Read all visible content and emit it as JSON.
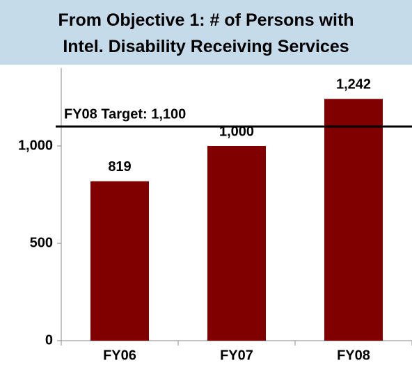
{
  "chart_data": {
    "type": "bar",
    "title": "From Objective 1: # of Persons with Intel. Disability Receiving Services",
    "categories": [
      "FY06",
      "FY07",
      "FY08"
    ],
    "values": [
      819,
      1000,
      1242
    ],
    "value_labels": [
      "819",
      "1,000",
      "1,242"
    ],
    "color": "#800000",
    "ylim": [
      0,
      1400
    ],
    "yticks": [
      0,
      500,
      {
        "value": 1000,
        "label": "1,000"
      }
    ],
    "grid": false,
    "target": {
      "value": 1100,
      "label": "FY08 Target: 1,100"
    }
  }
}
